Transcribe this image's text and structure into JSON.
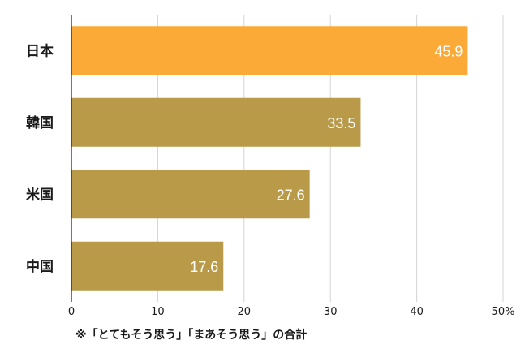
{
  "chart_data": {
    "type": "bar",
    "orientation": "horizontal",
    "categories": [
      "日本",
      "韓国",
      "米国",
      "中国"
    ],
    "values": [
      45.9,
      33.5,
      27.6,
      17.6
    ],
    "value_labels": [
      "45.9",
      "33.5",
      "27.6",
      "17.6"
    ],
    "highlight_index": 0,
    "colors": {
      "highlight": "#FBAA38",
      "default": "#B89A48"
    },
    "xlim": [
      0,
      50
    ],
    "x_ticks": [
      0,
      10,
      20,
      30,
      40,
      50
    ],
    "x_tick_labels": [
      "0",
      "10",
      "20",
      "30",
      "40",
      "50%"
    ],
    "grid": "vertical",
    "title": "",
    "xlabel": "",
    "ylabel": ""
  },
  "footnote": "※「とてもそう思う」「まあそう思う」の合計"
}
